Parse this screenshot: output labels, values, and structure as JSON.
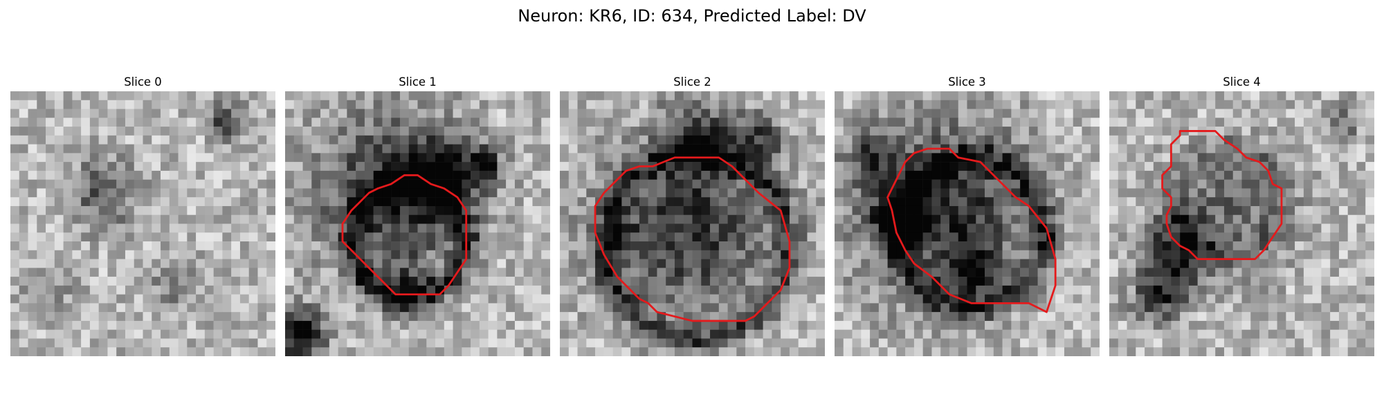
{
  "figure": {
    "title": "Neuron: KR6, ID: 634, Predicted Label: DV"
  },
  "colors": {
    "contour": "#e41a1c",
    "background": "#ffffff"
  },
  "panels": [
    {
      "title": "Slice 0",
      "seed": 11,
      "has_contour": false
    },
    {
      "title": "Slice 1",
      "seed": 23,
      "has_contour": true
    },
    {
      "title": "Slice 2",
      "seed": 37,
      "has_contour": true
    },
    {
      "title": "Slice 3",
      "seed": 51,
      "has_contour": true
    },
    {
      "title": "Slice 4",
      "seed": 67,
      "has_contour": true
    }
  ]
}
